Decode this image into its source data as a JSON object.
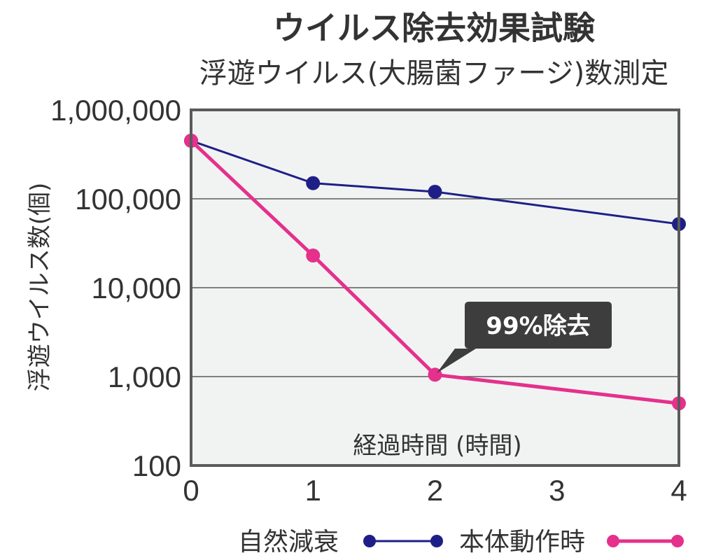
{
  "chart_data": {
    "type": "line",
    "title": "ウイルス除去効果試験",
    "subtitle": "浮遊ウイルス(大腸菌ファージ)数測定",
    "xlabel": "経過時間 (時間)",
    "ylabel": "浮遊ウイルス数(個)",
    "y_scale": "log",
    "ylim": [
      100,
      1000000
    ],
    "xlim": [
      0,
      4
    ],
    "x": [
      0,
      1,
      2,
      3,
      4
    ],
    "x_tick_labels": [
      "0",
      "1",
      "2",
      "3",
      "4"
    ],
    "y_ticks": [
      100,
      1000,
      10000,
      100000,
      1000000
    ],
    "y_tick_labels": [
      "100",
      "1,000",
      "10,000",
      "100,000",
      "1,000,000"
    ],
    "grid": "horizontal",
    "legend_position": "bottom",
    "series": [
      {
        "name": "自然減衰",
        "color": "#1e1f86",
        "x": [
          0,
          1,
          2,
          4
        ],
        "values": [
          450000,
          150000,
          120000,
          52000
        ]
      },
      {
        "name": "本体動作時",
        "color": "#e5308c",
        "x": [
          0,
          1,
          2,
          4
        ],
        "values": [
          450000,
          23000,
          1050,
          500
        ]
      }
    ],
    "annotations": [
      {
        "text": "99%除去",
        "series": 1,
        "x": 2
      }
    ],
    "colors": {
      "plot_background": "#f1f3f3",
      "frame": "#5a5a5a",
      "callout_background": "#3d3d3d"
    }
  }
}
